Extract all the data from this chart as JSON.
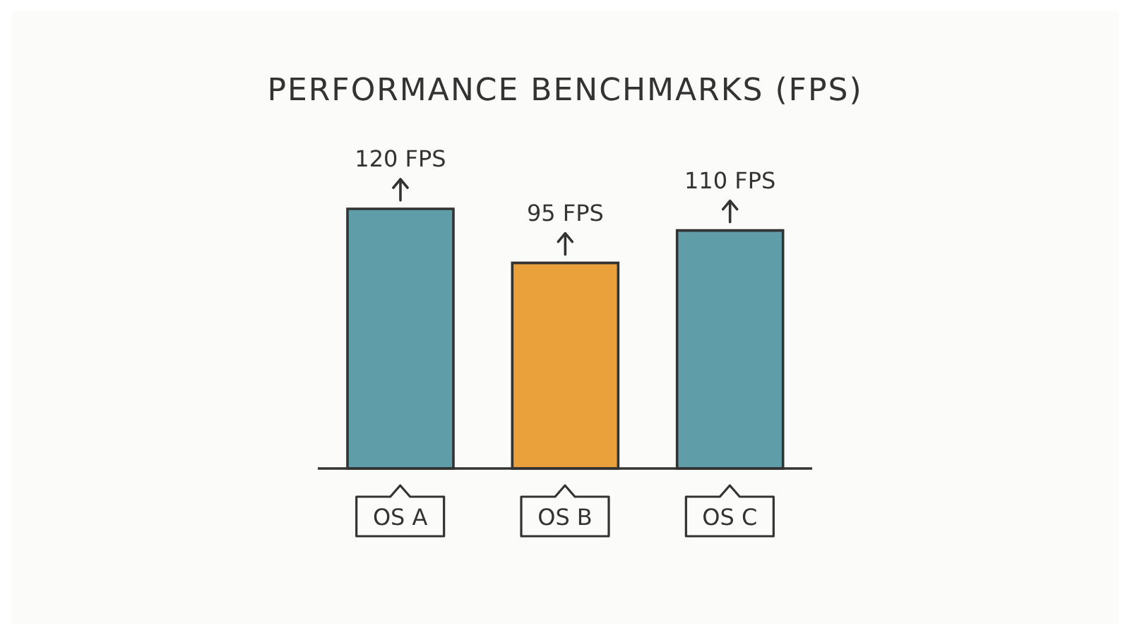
{
  "chart_data": {
    "type": "bar",
    "title": "PERFORMANCE BENCHMARKS (FPS)",
    "categories": [
      "OS A",
      "OS B",
      "OS C"
    ],
    "values": [
      120,
      95,
      110
    ],
    "colors": [
      "#5f9ea8",
      "#eba13b",
      "#5f9ea8"
    ],
    "value_labels": [
      "120 FPS",
      "95 FPS",
      "110 FPS"
    ],
    "grid": false,
    "legend": false
  }
}
